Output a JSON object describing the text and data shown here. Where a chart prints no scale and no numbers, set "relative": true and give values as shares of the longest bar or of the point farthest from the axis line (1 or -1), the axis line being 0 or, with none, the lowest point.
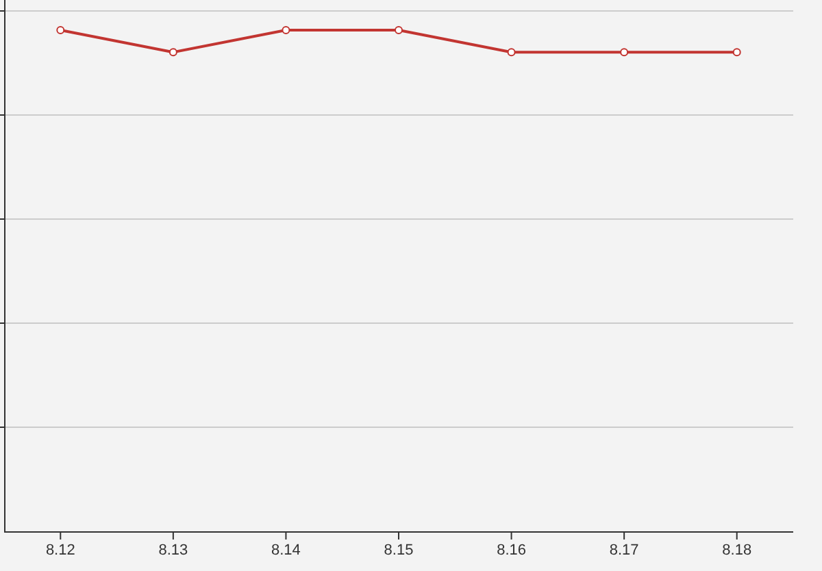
{
  "chart_data": {
    "type": "line",
    "relative": true,
    "categories": [
      "8.12",
      "8.13",
      "8.14",
      "8.15",
      "8.16",
      "8.17",
      "8.18"
    ],
    "series": [
      {
        "color": "#c23531",
        "values": [
          1,
          0.956,
          1,
          1,
          0.956,
          0.956,
          0.956
        ]
      }
    ],
    "grid": "y",
    "marker": "circle",
    "line_style": "solid"
  }
}
